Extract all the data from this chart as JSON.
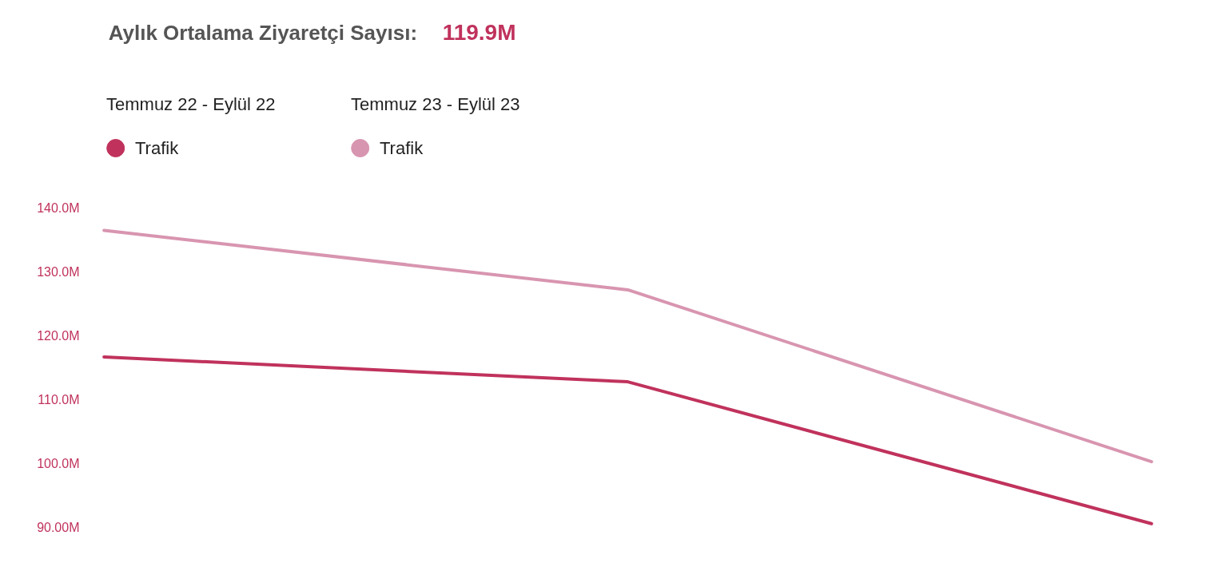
{
  "chart_data": {
    "type": "line",
    "title": "Aylık Ortalama Ziyaretçi Sayısı:",
    "subtitle": "119.9M",
    "annotations": [
      "Temmuz 22 - Eylül 22",
      "Temmuz 23 - Eylül 23"
    ],
    "categories": [
      null,
      null,
      null
    ],
    "series": [
      {
        "name": "Trafik",
        "color": "#c0325c",
        "values": [
          116.7,
          112.8,
          90.6
        ]
      },
      {
        "name": "Trafik",
        "color": "#d895b0",
        "values": [
          136.5,
          127.2,
          100.3
        ]
      }
    ],
    "ylim": [
      90,
      140
    ],
    "yticks": [
      {
        "value": 90,
        "label": "90.00M"
      },
      {
        "value": 100,
        "label": "100.0M"
      },
      {
        "value": 110,
        "label": "110.0M"
      },
      {
        "value": 120,
        "label": "120.0M"
      },
      {
        "value": 130,
        "label": "130.0M"
      },
      {
        "value": 140,
        "label": "140.0M"
      }
    ],
    "grid": false,
    "legend": "top left",
    "marker": "none",
    "line_style": "solid"
  }
}
